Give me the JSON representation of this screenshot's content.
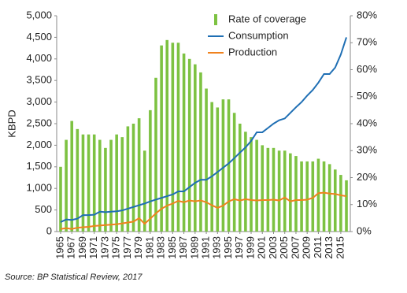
{
  "chart_data": {
    "type": "combo",
    "y_label": "KBPD",
    "source": "Source: BP Statistical Review, 2017",
    "x": [
      1965,
      1966,
      1967,
      1968,
      1969,
      1970,
      1971,
      1972,
      1973,
      1974,
      1975,
      1976,
      1977,
      1978,
      1979,
      1980,
      1981,
      1982,
      1983,
      1984,
      1985,
      1986,
      1987,
      1988,
      1989,
      1990,
      1991,
      1992,
      1993,
      1994,
      1995,
      1996,
      1997,
      1998,
      1999,
      2000,
      2001,
      2002,
      2003,
      2004,
      2005,
      2006,
      2007,
      2008,
      2009,
      2010,
      2011,
      2012,
      2013,
      2014,
      2015,
      2016
    ],
    "xlim": [
      1964.3,
      2016.7
    ],
    "xticks": [
      1965,
      1967,
      1969,
      1971,
      1973,
      1975,
      1977,
      1979,
      1981,
      1983,
      1985,
      1987,
      1989,
      1991,
      1993,
      1995,
      1997,
      1999,
      2001,
      2003,
      2005,
      2007,
      2009,
      2011,
      2013,
      2015
    ],
    "ylim": [
      0,
      5000
    ],
    "yticks": [
      0,
      500,
      {
        "value": 1000,
        "label": "1,000"
      },
      {
        "value": 1500,
        "label": "1,500"
      },
      {
        "value": 2000,
        "label": "2,000"
      },
      {
        "value": 2500,
        "label": "2,500"
      },
      {
        "value": 3000,
        "label": "3,000"
      },
      {
        "value": 3500,
        "label": "3,500"
      },
      {
        "value": 4000,
        "label": "4,000"
      },
      {
        "value": 4500,
        "label": "4,500"
      },
      {
        "value": 5000,
        "label": "5,000"
      }
    ],
    "y2lim": [
      0,
      80
    ],
    "y2ticks": [
      {
        "value": 0,
        "label": "0%"
      },
      {
        "value": 10,
        "label": "10%"
      },
      {
        "value": 20,
        "label": "20%"
      },
      {
        "value": 30,
        "label": "30%"
      },
      {
        "value": 40,
        "label": "40%"
      },
      {
        "value": 50,
        "label": "50%"
      },
      {
        "value": 60,
        "label": "60%"
      },
      {
        "value": 70,
        "label": "70%"
      },
      {
        "value": 80,
        "label": "80%"
      }
    ],
    "series": [
      {
        "name": "Rate of coverage",
        "type": "bar",
        "axis": "y2",
        "color": "#7dc242",
        "values": [
          24,
          34,
          41,
          38,
          36,
          36,
          36,
          34,
          31,
          34,
          36,
          35,
          39,
          40,
          42,
          30,
          45,
          57,
          69,
          71,
          70,
          70,
          66,
          64,
          62,
          59,
          53,
          48,
          46,
          49,
          49,
          44,
          40,
          37,
          35,
          34,
          32,
          31,
          31,
          30,
          30,
          29,
          28,
          26,
          26,
          26,
          27,
          26,
          25,
          23,
          21,
          19
        ]
      },
      {
        "name": "Consumption",
        "type": "line",
        "color": "#1f6fb4",
        "values": [
          220,
          280,
          270,
          300,
          380,
          380,
          390,
          460,
          450,
          460,
          470,
          490,
          530,
          570,
          610,
          650,
          700,
          740,
          780,
          820,
          860,
          930,
          930,
          1030,
          1130,
          1200,
          1200,
          1280,
          1380,
          1480,
          1580,
          1700,
          1830,
          1950,
          2100,
          2300,
          2300,
          2400,
          2500,
          2580,
          2620,
          2750,
          2880,
          3000,
          3150,
          3280,
          3450,
          3650,
          3650,
          3800,
          4100,
          4500
        ]
      },
      {
        "name": "Production",
        "type": "line",
        "color": "#f0821e",
        "values": [
          60,
          80,
          60,
          90,
          100,
          110,
          130,
          140,
          150,
          160,
          170,
          190,
          210,
          230,
          310,
          180,
          300,
          420,
          530,
          600,
          650,
          710,
          680,
          720,
          700,
          720,
          680,
          610,
          550,
          600,
          700,
          750,
          720,
          750,
          730,
          720,
          730,
          730,
          740,
          720,
          790,
          700,
          730,
          730,
          740,
          780,
          890,
          900,
          880,
          870,
          840,
          820
        ]
      }
    ]
  }
}
